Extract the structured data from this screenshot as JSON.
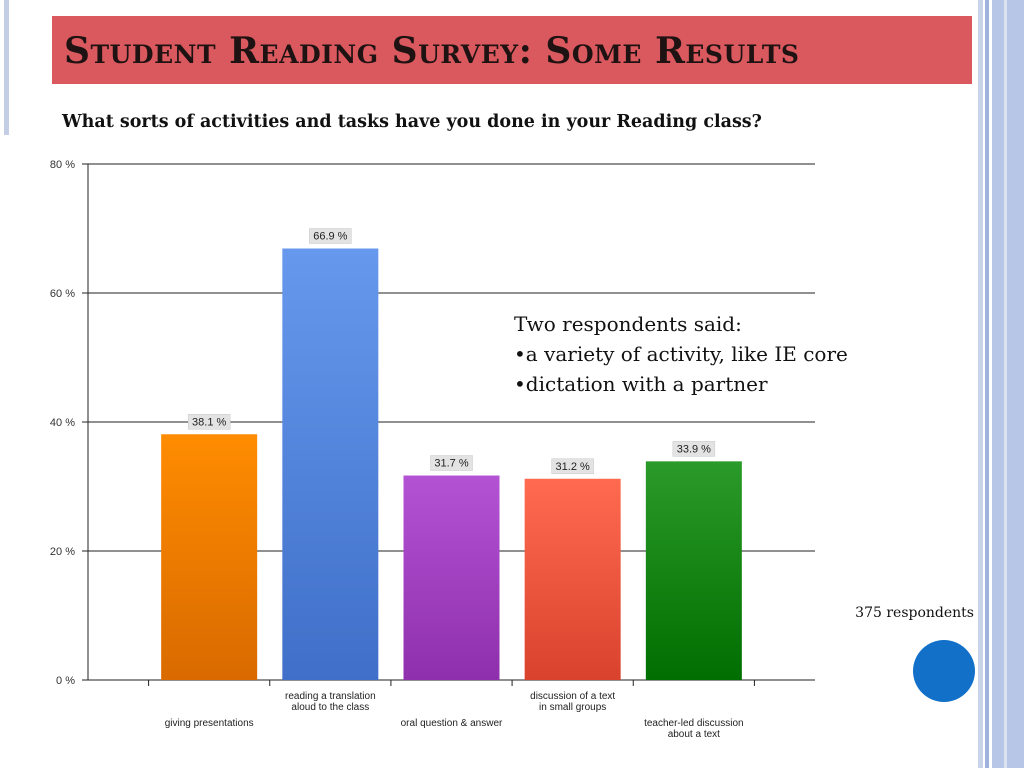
{
  "slide": {
    "title": "Student Reading Survey: Some Results",
    "question": "What sorts of activities and tasks have you done in your Reading class?",
    "note_heading": "Two respondents said:",
    "note_items": [
      "a variety of activity, like IE core",
      "dictation with a partner"
    ],
    "bullet_char": "•",
    "respondents": "375 respondents"
  },
  "colors": {
    "title_bar": "#d9595e",
    "accent_dot": "#1270c8"
  },
  "chart_data": {
    "type": "bar",
    "categories": [
      [
        "giving presentations"
      ],
      [
        "reading a translation",
        "aloud to the class"
      ],
      [
        "oral question & answer"
      ],
      [
        "discussion of a text",
        "in small groups"
      ],
      [
        "teacher-led discussion",
        "about a text"
      ]
    ],
    "values": [
      38.1,
      66.9,
      31.7,
      31.2,
      33.9
    ],
    "data_labels": [
      "38.1 %",
      "66.9 %",
      "31.7 %",
      "31.2 %",
      "33.9 %"
    ],
    "colors": [
      [
        "#ff8c00",
        "#d96a00"
      ],
      [
        "#6699ee",
        "#3f6fc8"
      ],
      [
        "#b452d4",
        "#8e30ad"
      ],
      [
        "#ff6a50",
        "#d9432e"
      ],
      [
        "#2a9a2a",
        "#006e00"
      ]
    ],
    "yticks": [
      0,
      20,
      40,
      60,
      80
    ],
    "ytick_labels": [
      "0 %",
      "20 %",
      "40 %",
      "60 %",
      "80 %"
    ],
    "ylim": [
      0,
      80
    ],
    "grid": true,
    "title": "",
    "xlabel": "",
    "ylabel": ""
  }
}
